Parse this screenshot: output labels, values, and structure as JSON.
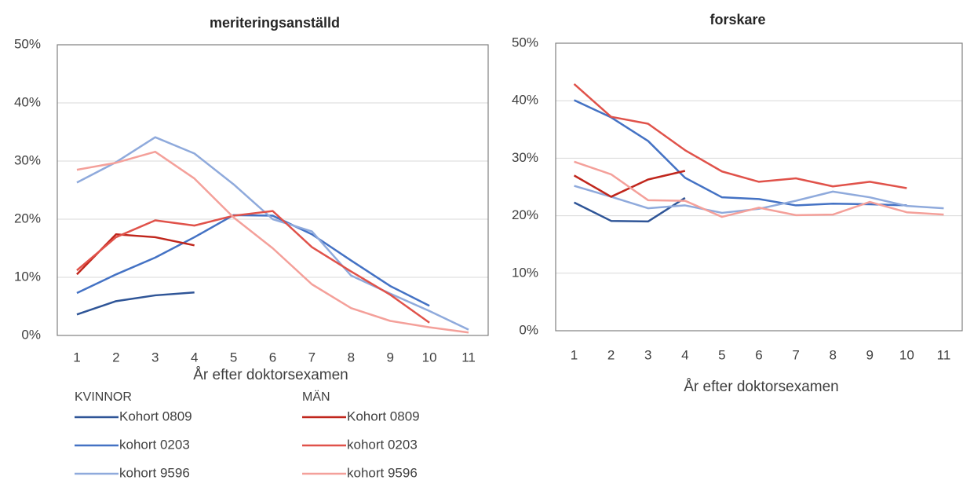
{
  "chart_data": [
    {
      "type": "line",
      "title": "meriteringsanställd",
      "x_label": "År efter doktorsexamen",
      "categories": [
        1,
        2,
        3,
        4,
        5,
        6,
        7,
        8,
        9,
        10,
        11
      ],
      "ylim": [
        0,
        50
      ],
      "yticks": [
        {
          "value": 0,
          "label": "0%"
        },
        {
          "value": 10,
          "label": "10%"
        },
        {
          "value": 20,
          "label": "20%"
        },
        {
          "value": 30,
          "label": "30%"
        },
        {
          "value": 40,
          "label": "40%"
        },
        {
          "value": 50,
          "label": "50%"
        }
      ],
      "grid": true,
      "series_groups": [
        {
          "name": "KVINNOR",
          "series": [
            {
              "name": "Kohort 0809",
              "color": "#2f5597",
              "values": [
                3.6,
                5.9,
                6.9,
                7.4,
                null,
                null,
                null,
                null,
                null,
                null,
                null
              ]
            },
            {
              "name": "kohort 0203",
              "color": "#4472c4",
              "values": [
                7.3,
                10.5,
                13.4,
                16.9,
                20.7,
                20.6,
                17.4,
                12.9,
                8.5,
                5.1,
                null
              ]
            },
            {
              "name": "kohort 9596",
              "color": "#8faadc",
              "values": [
                26.3,
                29.8,
                34.1,
                31.3,
                26.0,
                20.0,
                17.9,
                10.3,
                7.2,
                4.2,
                1.0
              ]
            }
          ]
        },
        {
          "name": "MÄN",
          "series": [
            {
              "name": "Kohort 0809",
              "color": "#c0261c",
              "values": [
                10.5,
                17.4,
                16.9,
                15.5,
                null,
                null,
                null,
                null,
                null,
                null,
                null
              ]
            },
            {
              "name": "kohort 0203",
              "color": "#e0524a",
              "values": [
                11.2,
                16.9,
                19.8,
                18.9,
                20.6,
                21.4,
                15.2,
                11.0,
                7.0,
                2.2,
                null
              ]
            },
            {
              "name": "kohort 9596",
              "color": "#f4a09a",
              "values": [
                28.5,
                29.7,
                31.6,
                27.0,
                20.3,
                15.0,
                8.8,
                4.7,
                2.5,
                1.4,
                0.5
              ]
            }
          ]
        }
      ]
    },
    {
      "type": "line",
      "title": "forskare",
      "x_label": "År efter doktorsexamen",
      "categories": [
        1,
        2,
        3,
        4,
        5,
        6,
        7,
        8,
        9,
        10,
        11
      ],
      "ylim": [
        0,
        50
      ],
      "yticks": [
        {
          "value": 0,
          "label": "0%"
        },
        {
          "value": 10,
          "label": "10%"
        },
        {
          "value": 20,
          "label": "20%"
        },
        {
          "value": 30,
          "label": "30%"
        },
        {
          "value": 40,
          "label": "40%"
        },
        {
          "value": 50,
          "label": "50%"
        }
      ],
      "grid": true,
      "series_groups": [
        {
          "series": [
            {
              "color": "#2f5597",
              "values": [
                22.3,
                19.1,
                19.0,
                23.1,
                null,
                null,
                null,
                null,
                null,
                null,
                null
              ]
            },
            {
              "color": "#4472c4",
              "values": [
                40.1,
                37.1,
                33.0,
                26.6,
                23.2,
                22.9,
                21.8,
                22.1,
                22.0,
                21.8,
                null
              ]
            },
            {
              "color": "#8faadc",
              "values": [
                25.2,
                23.3,
                21.3,
                21.8,
                20.5,
                21.2,
                22.6,
                24.2,
                23.2,
                21.7,
                21.3
              ]
            }
          ]
        },
        {
          "series": [
            {
              "color": "#c0261c",
              "values": [
                27.0,
                23.3,
                26.3,
                27.8,
                null,
                null,
                null,
                null,
                null,
                null,
                null
              ]
            },
            {
              "color": "#e0524a",
              "values": [
                42.9,
                37.2,
                36.0,
                31.4,
                27.7,
                25.9,
                26.5,
                25.1,
                25.9,
                24.8,
                null
              ]
            },
            {
              "color": "#f4a09a",
              "values": [
                29.4,
                27.2,
                22.7,
                22.6,
                19.8,
                21.4,
                20.1,
                20.2,
                22.4,
                20.6,
                20.2
              ]
            }
          ]
        }
      ]
    }
  ]
}
